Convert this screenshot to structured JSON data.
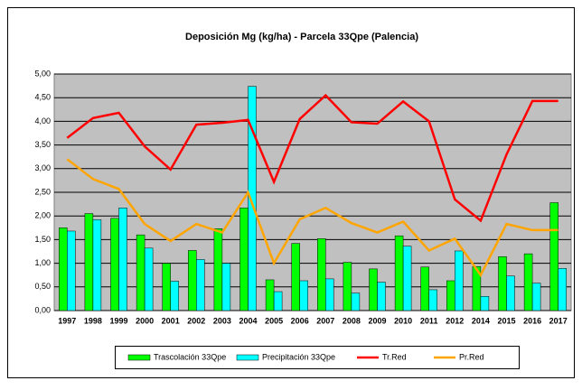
{
  "chart_data": {
    "type": "bar",
    "title": "Deposición Mg (kg/ha) - Parcela 33Qpe (Palencia)",
    "categories": [
      "1997",
      "1998",
      "1999",
      "2000",
      "2001",
      "2002",
      "2003",
      "2004",
      "2005",
      "2006",
      "2007",
      "2008",
      "2009",
      "2010",
      "2011",
      "2012",
      "2014",
      "2015",
      "2016",
      "2017"
    ],
    "series": [
      {
        "name": "Trascolación  33Qpe",
        "type": "bar",
        "color": "#00ff00",
        "values": [
          1.75,
          2.05,
          1.95,
          1.6,
          1.0,
          1.27,
          1.73,
          2.17,
          0.65,
          1.42,
          1.52,
          1.02,
          0.88,
          1.58,
          0.92,
          0.63,
          0.93,
          1.14,
          1.2,
          2.28
        ]
      },
      {
        "name": "Precipitación 33Qpe",
        "type": "bar",
        "color": "#00ffff",
        "values": [
          1.68,
          1.92,
          2.17,
          1.32,
          0.62,
          1.08,
          1.0,
          4.74,
          0.4,
          0.63,
          0.67,
          0.37,
          0.6,
          1.36,
          0.44,
          1.26,
          0.3,
          0.73,
          0.58,
          0.89
        ]
      },
      {
        "name": "Tr.Red",
        "type": "line",
        "color": "#ff0000",
        "values": [
          3.65,
          4.07,
          4.18,
          3.47,
          2.98,
          3.93,
          3.97,
          4.03,
          2.72,
          4.05,
          4.55,
          3.98,
          3.95,
          4.42,
          4.0,
          2.35,
          1.9,
          3.3,
          4.43,
          4.43
        ]
      },
      {
        "name": "Pr.Red",
        "type": "line",
        "color": "#ffa500",
        "values": [
          3.2,
          2.78,
          2.57,
          1.83,
          1.47,
          1.83,
          1.65,
          2.5,
          1.0,
          1.93,
          2.17,
          1.85,
          1.65,
          1.88,
          1.27,
          1.52,
          0.75,
          1.83,
          1.7,
          1.7
        ]
      }
    ],
    "ylim": [
      0,
      5
    ],
    "yticks": [
      {
        "value": 0,
        "label": "0,00"
      },
      {
        "value": 0.5,
        "label": "0,50"
      },
      {
        "value": 1,
        "label": "1,00"
      },
      {
        "value": 1.5,
        "label": "1,50"
      },
      {
        "value": 2,
        "label": "2,00"
      },
      {
        "value": 2.5,
        "label": "2,50"
      },
      {
        "value": 3,
        "label": "3,00"
      },
      {
        "value": 3.5,
        "label": "3,50"
      },
      {
        "value": 4,
        "label": "4,00"
      },
      {
        "value": 4.5,
        "label": "4,50"
      },
      {
        "value": 5,
        "label": "5,00"
      }
    ],
    "grid": true,
    "legend": "bottom"
  }
}
